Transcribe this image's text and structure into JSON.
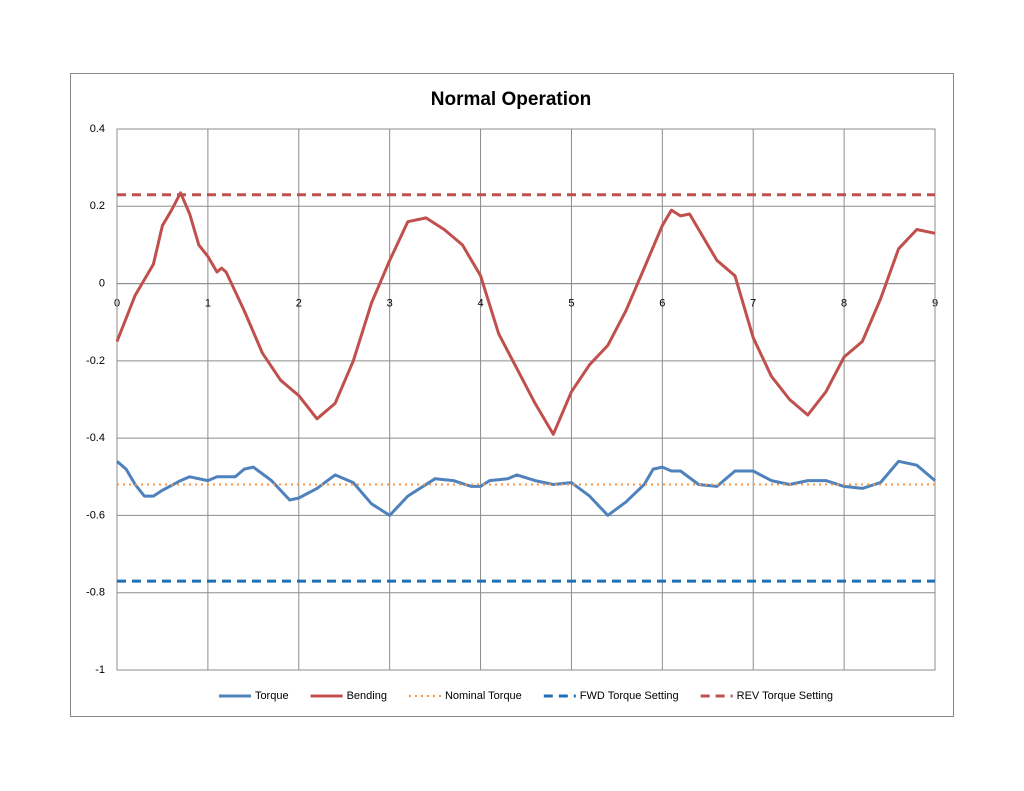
{
  "chart_data": {
    "type": "line",
    "title": "Normal Operation",
    "xlim": [
      0,
      9
    ],
    "xticks": [
      0,
      1,
      2,
      3,
      4,
      5,
      6,
      7,
      8,
      9
    ],
    "ylim": [
      -1,
      0.4
    ],
    "yticks": [
      -1,
      -0.8,
      -0.6,
      -0.4,
      -0.2,
      0,
      0.2,
      0.4
    ],
    "grid": true,
    "legend": "bottom",
    "series": [
      {
        "name": "Torque",
        "color": "#4f81bd",
        "style": "solid",
        "x": [
          0,
          0.1,
          0.2,
          0.3,
          0.4,
          0.5,
          0.7,
          0.8,
          1.0,
          1.1,
          1.3,
          1.4,
          1.5,
          1.7,
          1.9,
          2.0,
          2.2,
          2.4,
          2.6,
          2.8,
          3.0,
          3.2,
          3.5,
          3.7,
          3.9,
          4.0,
          4.1,
          4.3,
          4.4,
          4.6,
          4.8,
          5.0,
          5.2,
          5.4,
          5.6,
          5.8,
          5.9,
          6.0,
          6.1,
          6.2,
          6.4,
          6.6,
          6.8,
          7.0,
          7.2,
          7.4,
          7.6,
          7.8,
          8.0,
          8.2,
          8.4,
          8.6,
          8.8,
          9.0
        ],
        "values": [
          -0.46,
          -0.48,
          -0.52,
          -0.55,
          -0.55,
          -0.535,
          -0.51,
          -0.5,
          -0.51,
          -0.5,
          -0.5,
          -0.48,
          -0.475,
          -0.51,
          -0.56,
          -0.555,
          -0.53,
          -0.495,
          -0.515,
          -0.57,
          -0.6,
          -0.55,
          -0.505,
          -0.51,
          -0.525,
          -0.525,
          -0.51,
          -0.505,
          -0.495,
          -0.51,
          -0.52,
          -0.515,
          -0.55,
          -0.6,
          -0.565,
          -0.52,
          -0.48,
          -0.475,
          -0.485,
          -0.485,
          -0.52,
          -0.525,
          -0.485,
          -0.485,
          -0.51,
          -0.52,
          -0.51,
          -0.51,
          -0.525,
          -0.53,
          -0.515,
          -0.46,
          -0.47,
          -0.51
        ]
      },
      {
        "name": "Bending",
        "color": "#c0504d",
        "style": "solid",
        "x": [
          0,
          0.2,
          0.4,
          0.5,
          0.6,
          0.7,
          0.8,
          0.9,
          1.0,
          1.1,
          1.15,
          1.2,
          1.4,
          1.6,
          1.8,
          2.0,
          2.2,
          2.4,
          2.6,
          2.8,
          3.0,
          3.2,
          3.4,
          3.6,
          3.8,
          4.0,
          4.2,
          4.4,
          4.6,
          4.8,
          5.0,
          5.2,
          5.4,
          5.6,
          5.8,
          6.0,
          6.1,
          6.2,
          6.3,
          6.4,
          6.6,
          6.8,
          7.0,
          7.2,
          7.4,
          7.6,
          7.8,
          8.0,
          8.2,
          8.4,
          8.6,
          8.8,
          9.0
        ],
        "values": [
          -0.15,
          -0.03,
          0.05,
          0.15,
          0.19,
          0.235,
          0.18,
          0.1,
          0.07,
          0.03,
          0.04,
          0.03,
          -0.07,
          -0.18,
          -0.25,
          -0.29,
          -0.35,
          -0.31,
          -0.2,
          -0.05,
          0.06,
          0.16,
          0.17,
          0.14,
          0.1,
          0.02,
          -0.13,
          -0.22,
          -0.31,
          -0.39,
          -0.28,
          -0.21,
          -0.16,
          -0.07,
          0.04,
          0.15,
          0.19,
          0.175,
          0.18,
          0.14,
          0.06,
          0.02,
          -0.14,
          -0.24,
          -0.3,
          -0.34,
          -0.28,
          -0.19,
          -0.15,
          -0.04,
          0.09,
          0.14,
          0.13
        ]
      },
      {
        "name": "Nominal Torque",
        "color": "#f79646",
        "style": "dotted",
        "x": [
          0,
          9
        ],
        "values": [
          -0.52,
          -0.52
        ]
      },
      {
        "name": "FWD Torque Setting",
        "color": "#1f6fb4",
        "style": "dashed",
        "x": [
          0,
          9
        ],
        "values": [
          -0.77,
          -0.77
        ]
      },
      {
        "name": "REV Torque Setting",
        "color": "#c0504d",
        "style": "dashed",
        "x": [
          0,
          9
        ],
        "values": [
          0.23,
          0.23
        ]
      }
    ]
  }
}
